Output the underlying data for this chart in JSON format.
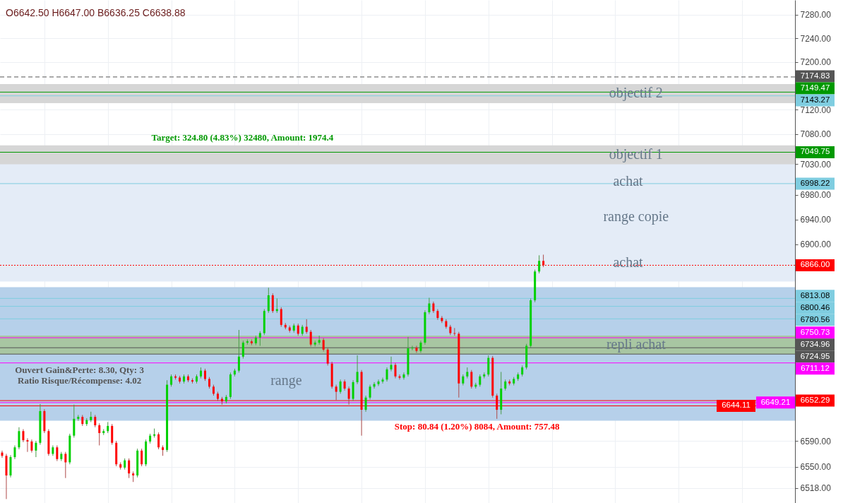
{
  "chart_data": {
    "type": "candlestick",
    "subtitle": "O6642.50 H6647.00 B6636.25 C6638.88",
    "categories": [
      null,
      null,
      null,
      null,
      null,
      null,
      null,
      null,
      null,
      null,
      null,
      null,
      null,
      null,
      null,
      null,
      null,
      null,
      null,
      null,
      null,
      null,
      null,
      null,
      null,
      null,
      null,
      null,
      null,
      null,
      null,
      null,
      null,
      null,
      null,
      null,
      null,
      null,
      null,
      null,
      null,
      null,
      null,
      null,
      null,
      null,
      null,
      null,
      null,
      null,
      null,
      null,
      null,
      null,
      null,
      null,
      null,
      null,
      null,
      null,
      null,
      null,
      null,
      null,
      null,
      null,
      null,
      null,
      null,
      null,
      null,
      null,
      null,
      null,
      null,
      null,
      null,
      null,
      null,
      null,
      null,
      null,
      null,
      null,
      null,
      null,
      null,
      null,
      null,
      null,
      null,
      null,
      null,
      null,
      null,
      null,
      null,
      null,
      null,
      null,
      null,
      null,
      null,
      null,
      null,
      null,
      null,
      null,
      null,
      null,
      null,
      null,
      null,
      null,
      null,
      null,
      null,
      null,
      null,
      null,
      null,
      null,
      null,
      null,
      null,
      null,
      null,
      null,
      null,
      null,
      null,
      null,
      null,
      null,
      null,
      null,
      null,
      null,
      null,
      null,
      null,
      null,
      null,
      null,
      null,
      null,
      null,
      null,
      null,
      null,
      null,
      null,
      null,
      null,
      null,
      null,
      null,
      null,
      null,
      null,
      null,
      null,
      null,
      null,
      null,
      null,
      null,
      null,
      null,
      null,
      null,
      null,
      null,
      null,
      null,
      null,
      null,
      null,
      null,
      null,
      null,
      null,
      null,
      null,
      null,
      null,
      null,
      null
    ],
    "ohlc": [
      [
        6572,
        6575,
        6564,
        6567
      ],
      [
        6567,
        6570,
        6501,
        6537
      ],
      [
        6537,
        6568,
        6534,
        6565
      ],
      [
        6565,
        6583,
        6562,
        6580
      ],
      [
        6580,
        6611,
        6577,
        6605
      ],
      [
        6605,
        6608,
        6588,
        6591
      ],
      [
        6591,
        6594,
        6573,
        6589
      ],
      [
        6589,
        6592,
        6572,
        6575
      ],
      [
        6575,
        6590,
        6565,
        6587
      ],
      [
        6587,
        6647,
        6584,
        6636
      ],
      [
        6636,
        6639,
        6602,
        6605
      ],
      [
        6605,
        6608,
        6567,
        6570
      ],
      [
        6570,
        6583,
        6567,
        6580
      ],
      [
        6580,
        6583,
        6559,
        6562
      ],
      [
        6562,
        6573,
        6559,
        6570
      ],
      [
        6570,
        6573,
        6533,
        6557
      ],
      [
        6557,
        6601,
        6554,
        6598
      ],
      [
        6598,
        6646,
        6595,
        6624
      ],
      [
        6624,
        6630,
        6621,
        6627
      ],
      [
        6627,
        6630,
        6613,
        6616
      ],
      [
        6616,
        6625,
        6613,
        6622
      ],
      [
        6622,
        6635,
        6619,
        6627
      ],
      [
        6627,
        6630,
        6611,
        6614
      ],
      [
        6614,
        6617,
        6583,
        6602
      ],
      [
        6602,
        6608,
        6599,
        6605
      ],
      [
        6605,
        6619,
        6602,
        6613
      ],
      [
        6613,
        6616,
        6584,
        6587
      ],
      [
        6587,
        6590,
        6551,
        6554
      ],
      [
        6554,
        6557,
        6546,
        6549
      ],
      [
        6549,
        6563,
        6546,
        6560
      ],
      [
        6560,
        6563,
        6533,
        6540
      ],
      [
        6540,
        6543,
        6527,
        6537
      ],
      [
        6537,
        6578,
        6534,
        6575
      ],
      [
        6575,
        6578,
        6551,
        6554
      ],
      [
        6554,
        6592,
        6551,
        6589
      ],
      [
        6589,
        6601,
        6586,
        6598
      ],
      [
        6598,
        6609,
        6595,
        6600
      ],
      [
        6600,
        6603,
        6577,
        6580
      ],
      [
        6580,
        6583,
        6567,
        6576
      ],
      [
        6576,
        6684,
        6573,
        6677
      ],
      [
        6677,
        6693,
        6674,
        6690
      ],
      [
        6690,
        6693,
        6685,
        6688
      ],
      [
        6688,
        6691,
        6679,
        6682
      ],
      [
        6682,
        6693,
        6679,
        6690
      ],
      [
        6690,
        6693,
        6681,
        6684
      ],
      [
        6684,
        6687,
        6679,
        6682
      ],
      [
        6682,
        6693,
        6679,
        6690
      ],
      [
        6690,
        6704,
        6687,
        6699
      ],
      [
        6699,
        6702,
        6683,
        6686
      ],
      [
        6686,
        6689,
        6671,
        6674
      ],
      [
        6674,
        6677,
        6660,
        6663
      ],
      [
        6663,
        6666,
        6652,
        6655
      ],
      [
        6655,
        6658,
        6646,
        6651
      ],
      [
        6651,
        6661,
        6648,
        6658
      ],
      [
        6658,
        6696,
        6655,
        6693
      ],
      [
        6693,
        6702,
        6690,
        6699
      ],
      [
        6699,
        6763,
        6696,
        6721
      ],
      [
        6721,
        6746,
        6718,
        6743
      ],
      [
        6743,
        6748,
        6740,
        6745
      ],
      [
        6745,
        6748,
        6739,
        6742
      ],
      [
        6742,
        6754,
        6739,
        6751
      ],
      [
        6751,
        6761,
        6738,
        6758
      ],
      [
        6758,
        6796,
        6755,
        6793
      ],
      [
        6793,
        6830,
        6790,
        6818
      ],
      [
        6818,
        6821,
        6790,
        6793
      ],
      [
        6793,
        6813,
        6790,
        6796
      ],
      [
        6796,
        6799,
        6768,
        6771
      ],
      [
        6771,
        6774,
        6764,
        6767
      ],
      [
        6767,
        6770,
        6759,
        6762
      ],
      [
        6762,
        6773,
        6759,
        6770
      ],
      [
        6770,
        6773,
        6754,
        6757
      ],
      [
        6757,
        6771,
        6754,
        6768
      ],
      [
        6768,
        6780,
        6757,
        6760
      ],
      [
        6760,
        6763,
        6737,
        6740
      ],
      [
        6740,
        6746,
        6737,
        6743
      ],
      [
        6743,
        6754,
        6740,
        6747
      ],
      [
        6747,
        6750,
        6729,
        6732
      ],
      [
        6732,
        6735,
        6707,
        6710
      ],
      [
        6710,
        6713,
        6671,
        6674
      ],
      [
        6674,
        6677,
        6653,
        6666
      ],
      [
        6666,
        6685,
        6663,
        6682
      ],
      [
        6682,
        6685,
        6668,
        6671
      ],
      [
        6671,
        6674,
        6646,
        6655
      ],
      [
        6655,
        6684,
        6652,
        6681
      ],
      [
        6681,
        6723,
        6678,
        6697
      ],
      [
        6697,
        6700,
        6598,
        6638
      ],
      [
        6638,
        6660,
        6635,
        6657
      ],
      [
        6657,
        6677,
        6654,
        6674
      ],
      [
        6674,
        6681,
        6671,
        6678
      ],
      [
        6678,
        6685,
        6675,
        6682
      ],
      [
        6682,
        6688,
        6679,
        6685
      ],
      [
        6685,
        6704,
        6682,
        6701
      ],
      [
        6701,
        6721,
        6698,
        6708
      ],
      [
        6708,
        6711,
        6687,
        6690
      ],
      [
        6690,
        6693,
        6685,
        6688
      ],
      [
        6688,
        6696,
        6685,
        6693
      ],
      [
        6693,
        6752,
        6690,
        6734
      ],
      [
        6734,
        6738,
        6731,
        6735
      ],
      [
        6735,
        6738,
        6727,
        6730
      ],
      [
        6730,
        6746,
        6727,
        6743
      ],
      [
        6743,
        6794,
        6740,
        6791
      ],
      [
        6791,
        6814,
        6788,
        6805
      ],
      [
        6805,
        6808,
        6790,
        6793
      ],
      [
        6793,
        6796,
        6779,
        6782
      ],
      [
        6782,
        6785,
        6774,
        6777
      ],
      [
        6777,
        6780,
        6765,
        6768
      ],
      [
        6768,
        6771,
        6755,
        6758
      ],
      [
        6758,
        6766,
        6754,
        6757
      ],
      [
        6757,
        6760,
        6657,
        6679
      ],
      [
        6679,
        6693,
        6676,
        6690
      ],
      [
        6690,
        6704,
        6687,
        6697
      ],
      [
        6697,
        6700,
        6671,
        6674
      ],
      [
        6674,
        6680,
        6671,
        6677
      ],
      [
        6677,
        6693,
        6674,
        6690
      ],
      [
        6690,
        6696,
        6687,
        6693
      ],
      [
        6693,
        6723,
        6690,
        6719
      ],
      [
        6719,
        6722,
        6657,
        6660
      ],
      [
        6660,
        6663,
        6624,
        6638
      ],
      [
        6638,
        6697,
        6631,
        6671
      ],
      [
        6671,
        6685,
        6668,
        6682
      ],
      [
        6682,
        6685,
        6676,
        6679
      ],
      [
        6679,
        6689,
        6676,
        6686
      ],
      [
        6686,
        6696,
        6683,
        6693
      ],
      [
        6693,
        6707,
        6690,
        6704
      ],
      [
        6704,
        6741,
        6701,
        6738
      ],
      [
        6738,
        6813,
        6735,
        6810
      ],
      [
        6810,
        6859,
        6807,
        6856
      ],
      [
        6856,
        6882,
        6853,
        6873
      ],
      [
        6873,
        6883,
        6863,
        6866
      ],
      null,
      null,
      null,
      null,
      null,
      null,
      null,
      null,
      null,
      null,
      null,
      null,
      null,
      null,
      null,
      null,
      null,
      null,
      null,
      null,
      null,
      null,
      null,
      null,
      null,
      null,
      null,
      null,
      null,
      null,
      null,
      null,
      null,
      null,
      null,
      null,
      null,
      null,
      null,
      null,
      null,
      null,
      null,
      null,
      null,
      null,
      null,
      null,
      null,
      null,
      null,
      null,
      null,
      null,
      null,
      null,
      null,
      null,
      null
    ],
    "colors": [
      "#ff0000",
      "#ff0000",
      "#00d000",
      "#00d000",
      "#00d000",
      "#ff0000",
      "#ff0000",
      "#ff0000",
      "#00d000",
      "#00d000",
      "#ff0000",
      "#ff0000",
      "#00d000",
      "#ff0000",
      "#00d000",
      "#ff0000",
      "#00d000",
      "#00d000",
      "#00d000",
      "#ff0000",
      "#00d000",
      "#00d000",
      "#ff0000",
      "#ff0000",
      "#00d000",
      "#00d000",
      "#ff0000",
      "#ff0000",
      "#ff0000",
      "#00d000",
      "#ff0000",
      "#ff0000",
      "#00d000",
      "#ff0000",
      "#00d000",
      "#00d000",
      "#00d000",
      "#ff0000",
      "#ff0000",
      "#00d000",
      "#00d000",
      "#ff0000",
      "#ff0000",
      "#00d000",
      "#ff0000",
      "#ff0000",
      "#00d000",
      "#00d000",
      "#ff0000",
      "#ff0000",
      "#ff0000",
      "#ff0000",
      "#ff0000",
      "#00d000",
      "#00d000",
      "#00d000",
      "#00d000",
      "#00d000",
      "#00d000",
      "#ff0000",
      "#00d000",
      "#00d000",
      "#00d000",
      "#00d000",
      "#ff0000",
      "#00d000",
      "#ff0000",
      "#ff0000",
      "#ff0000",
      "#00d000",
      "#ff0000",
      "#00d000",
      "#ff0000",
      "#ff0000",
      "#00d000",
      "#00d000",
      "#ff0000",
      "#ff0000",
      "#ff0000",
      "#ff0000",
      "#00d000",
      "#ff0000",
      "#ff0000",
      "#00d000",
      "#00d000",
      "#ff0000",
      "#00d000",
      "#00d000",
      "#00d000",
      "#00d000",
      "#00d000",
      "#00d000",
      "#00d000",
      "#ff0000",
      "#ff0000",
      "#00d000",
      "#00d000",
      "#00d000",
      "#ff0000",
      "#00d000",
      "#00d000",
      "#00d000",
      "#ff0000",
      "#ff0000",
      "#ff0000",
      "#ff0000",
      "#ff0000",
      "#ff0000",
      "#ff0000",
      "#00d000",
      "#00d000",
      "#ff0000",
      "#00d000",
      "#00d000",
      "#00d000",
      "#00d000",
      "#ff0000",
      "#ff0000",
      "#00d000",
      "#00d000",
      "#ff0000",
      "#00d000",
      "#00d000",
      "#00d000",
      "#00d000",
      "#00d000",
      "#00d000",
      "#00d000",
      "#ff0000",
      null,
      null,
      null,
      null,
      null,
      null,
      null,
      null,
      null,
      null,
      null,
      null,
      null,
      null,
      null,
      null,
      null,
      null,
      null,
      null,
      null,
      null,
      null,
      null,
      null,
      null,
      null,
      null,
      null,
      null,
      null,
      null,
      null,
      null,
      null,
      null,
      null,
      null,
      null,
      null,
      null,
      null,
      null,
      null,
      null,
      null,
      null,
      null,
      null,
      null,
      null,
      null,
      null,
      null,
      null,
      null,
      null,
      null,
      null
    ],
    "ylim": [
      6495,
      7305
    ],
    "log": true,
    "yticks": [
      {
        "value": 7280,
        "label": "7280.00"
      },
      {
        "value": 7240,
        "label": "7240.00"
      },
      {
        "value": 7200,
        "label": "7200.00"
      },
      {
        "value": 7120,
        "label": "7120.00"
      },
      {
        "value": 7080,
        "label": "7080.00"
      },
      {
        "value": 7030,
        "label": "7030.00"
      },
      {
        "value": 6980,
        "label": "6980.00"
      },
      {
        "value": 6940,
        "label": "6940.00"
      },
      {
        "value": 6900,
        "label": "6900.00"
      },
      {
        "value": 6590,
        "label": "6590.00"
      },
      {
        "value": 6550,
        "label": "6550.00"
      },
      {
        "value": 6518,
        "label": "6518.00"
      }
    ],
    "tick_labels": "y",
    "grid": true,
    "bands": [
      {
        "axis": "y",
        "from": 6840,
        "to": 7049,
        "label": "range copie",
        "color": "#e4ecf7"
      },
      {
        "axis": "y",
        "from": 6621,
        "to": 6831,
        "label": "range",
        "color": "#b6d0ea"
      },
      {
        "axis": "y",
        "from": 7131,
        "to": 7163,
        "label": "objectif 2",
        "color": "#d6d6d6"
      },
      {
        "axis": "y",
        "from": 7030,
        "to": 7061,
        "label": "objectif 1",
        "color": "#d6d6d6"
      },
      {
        "axis": "y",
        "from": 6725,
        "to": 6754,
        "label": "repli achat",
        "color": "#a8c6a2"
      }
    ],
    "ref_lines": [
      {
        "axis": "y",
        "value": 7174.83,
        "label": "7174.83",
        "color": "#555555",
        "line_style": "dashed"
      },
      {
        "axis": "y",
        "value": 7149.47,
        "label": "7149.47",
        "color": "#009900"
      },
      {
        "axis": "y",
        "value": 7143.27,
        "label": "7143.27",
        "color": "#7fcde0"
      },
      {
        "axis": "y",
        "value": 7049.75,
        "label": "7049.75",
        "color": "#009900"
      },
      {
        "axis": "y",
        "value": 6998.22,
        "label": "6998.22",
        "color": "#7fcde0"
      },
      {
        "axis": "y",
        "value": 6866.0,
        "label": "6866.00",
        "color": "#ff0000",
        "line_style": "dotted"
      },
      {
        "axis": "y",
        "value": 6813.08,
        "label": "6813.08",
        "color": "#7fcde0"
      },
      {
        "axis": "y",
        "value": 6800.46,
        "label": "6800.46",
        "color": "#7fcde0"
      },
      {
        "axis": "y",
        "value": 6780.56,
        "label": "6780.56",
        "color": "#7fcde0"
      },
      {
        "axis": "y",
        "value": 6750.73,
        "label": "6750.73",
        "color": "#ff00ff"
      },
      {
        "axis": "y",
        "value": 6734.96,
        "label": "6734.96",
        "color": "#555555"
      },
      {
        "axis": "y",
        "value": 6724.95,
        "label": "6724.95",
        "color": "#555555"
      },
      {
        "axis": "y",
        "value": 6711.12,
        "label": "6711.12",
        "color": "#ff00ff"
      },
      {
        "axis": "y",
        "value": 6652.29,
        "label": "6652.29",
        "color": "#ff0000"
      },
      {
        "axis": "y",
        "value": 6649.21,
        "label": "6649.21",
        "color": "#ff00ff"
      },
      {
        "axis": "y",
        "value": 6644.11,
        "label": "6644.11",
        "color": "#ff0000"
      }
    ],
    "annotations": [
      {
        "text": "Target: 324.80 (4.83%) 32480, Amount: 1974.4",
        "y": 7049.75
      },
      {
        "text": "achat",
        "y": 7002
      },
      {
        "text": "achat",
        "y": 6870
      },
      {
        "text": "Ouvert Gain&Perte: 8.30, Qty: 3",
        "y": 6724.95
      },
      {
        "text": "Ratio Risque/Récompense: 4.02",
        "y": 6724.95
      },
      {
        "text": "Stop: 80.84 (1.20%) 8084, Amount: 757.48",
        "y": 6644.11
      }
    ]
  }
}
